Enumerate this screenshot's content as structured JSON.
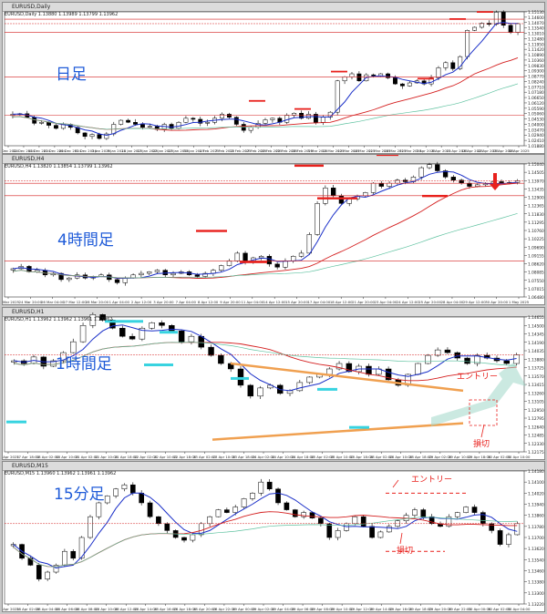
{
  "panels": [
    {
      "id": "daily",
      "window_title": "EURUSD,Daily",
      "info": "EURUSD,Daily  1.13880 1.13989 1.13799 1.13962",
      "timeframe_label": "日足",
      "price_ticks": [
        "1.15130",
        "1.14600",
        "1.14070",
        "1.13540",
        "1.13010",
        "1.12480",
        "1.11950",
        "1.11420",
        "1.10890",
        "1.10360",
        "1.09830",
        "1.09300",
        "1.08770",
        "1.08240",
        "1.07710",
        "1.07180",
        "1.06650",
        "1.06120",
        "1.05590",
        "1.05060",
        "1.04530",
        "1.04000",
        "1.03470",
        "1.02940",
        "1.02410",
        "1.01880"
      ],
      "time_ticks": [
        "9 Dec 2024",
        "12 Dec 2024",
        "18 Dec 2024",
        "23 Dec 2024",
        "26 Dec 2024",
        "31 Dec 2024",
        "3 Jan 2025",
        "9 Jan 2025",
        "14 Jan 2025",
        "17 Jan 2025",
        "22 Jan 2025",
        "27 Jan 2025",
        "30 Jan 2025",
        "4 Feb 2025",
        "7 Feb 2025",
        "12 Feb 2025",
        "17 Feb 2025",
        "20 Feb 2025",
        "25 Feb 2025",
        "28 Feb 2025",
        "5 Mar 2025",
        "10 Mar 2025",
        "13 Mar 2025",
        "18 Mar 2025",
        "21 Mar 2025",
        "26 Mar 2025",
        "31 Mar 2025",
        "3 Apr 2025",
        "8 Apr 2025",
        "11 Apr 2025",
        "16 Apr 2025",
        "22 Apr 2025",
        "25 Apr 2025",
        "30 Apr 2025"
      ]
    },
    {
      "id": "h4",
      "window_title": "EURUSD,H4",
      "info": "EURUSD,H4  1.13820 1.13854 1.13799 1.13962",
      "timeframe_label": "4時間足",
      "price_ticks": [
        "1.15040",
        "1.14505",
        "1.13970",
        "1.13435",
        "1.12900",
        "1.12365",
        "1.11830",
        "1.11295",
        "1.10760",
        "1.10225",
        "1.09690",
        "1.09155",
        "1.08620",
        "1.08085",
        "1.07550",
        "1.07015",
        "1.06480"
      ],
      "time_ticks": [
        "20 Mar 2025",
        "24 Mar 20:00",
        "26 Mar 04:00",
        "27 Mar 12:00",
        "28 Mar 20:00",
        "1 Apr 04:00",
        "2 Apr 12:00",
        "3 Apr 20:00",
        "7 Apr 04:00",
        "8 Apr 12:00",
        "9 Apr 20:00",
        "11 Apr 04:00",
        "14 Apr 12:00",
        "15 Apr 20:00",
        "17 Apr 04:00",
        "18 Apr 12:00",
        "21 Apr 20:00",
        "23 Apr 04:00",
        "24 Apr 12:00",
        "25 Apr 20:00",
        "28 Apr 04:00",
        "29 Apr 12:00",
        "30 Apr 20:00",
        "1 May 2025"
      ]
    },
    {
      "id": "h1",
      "window_title": "EURUSD,H1",
      "info": "EURUSD,H1  1.13962 1.13962 1.13961 1.13962",
      "timeframe_label": "1時間足",
      "entry_label": "エントリー",
      "stop_label": "損切",
      "price_ticks": [
        "1.14655",
        "1.14500",
        "1.14345",
        "1.14190",
        "1.14035",
        "1.13880",
        "1.13725",
        "1.13570",
        "1.13415",
        "1.13260",
        "1.13105",
        "1.12950",
        "1.12795",
        "1.12640",
        "1.12485",
        "1.12330",
        "1.12175"
      ],
      "time_ticks": [
        "17 Apr 2025",
        "17 Apr 18:00",
        "18 Apr 02:00",
        "18 Apr 10:00",
        "21 Apr 02:00",
        "21 Apr 10:00",
        "21 Apr 18:00",
        "22 Apr 02:00",
        "22 Apr 10:00",
        "22 Apr 18:00",
        "23 Apr 02:00",
        "23 Apr 10:00",
        "23 Apr 18:00",
        "24 Apr 02:00",
        "24 Apr 10:00",
        "24 Apr 18:00",
        "25 Apr 02:00",
        "25 Apr 10:00",
        "25 Apr 18:00",
        "28 Apr 02:00",
        "28 Apr 10:00",
        "28 Apr 18:00",
        "29 Apr 02:00",
        "29 Apr 10:00",
        "29 Apr 18:00",
        "30 Apr 02:00",
        "30 Apr 10:00"
      ]
    },
    {
      "id": "m15",
      "window_title": "EURUSD,M15",
      "info": "EURUSD,M15  1.13960 1.13962 1.13961 1.13962",
      "timeframe_label": "15分足",
      "entry_label": "エントリー",
      "stop_label": "損切",
      "price_ticks": [
        "1.14180",
        "1.14100",
        "1.14020",
        "1.13940",
        "1.13860",
        "1.13780",
        "1.13700",
        "1.13620",
        "1.13540",
        "1.13460",
        "1.13380",
        "1.13300",
        "1.13220"
      ],
      "time_ticks": [
        "28 Apr 2025",
        "28 Apr 02:00",
        "28 Apr 04:00",
        "28 Apr 06:00",
        "28 Apr 08:00",
        "28 Apr 10:00",
        "28 Apr 12:00",
        "28 Apr 14:00",
        "28 Apr 16:00",
        "28 Apr 18:00",
        "28 Apr 20:00",
        "28 Apr 22:00",
        "29 Apr 00:00",
        "29 Apr 02:00",
        "29 Apr 04:00",
        "29 Apr 06:00",
        "29 Apr 08:00",
        "29 Apr 10:00",
        "29 Apr 12:00",
        "29 Apr 14:00",
        "29 Apr 16:00",
        "29 Apr 18:00",
        "29 Apr 20:00",
        "29 Apr 22:00",
        "30 Apr 00:00",
        "30 Apr 02:00",
        "30 Apr 04:00"
      ]
    }
  ],
  "colors": {
    "bull_candle": "#ffffff",
    "bear_candle": "#000000",
    "ma_short": "#1a2fc8",
    "ma_mid": "#d41f1f",
    "ma_long": "#5fc2a0",
    "support_line": "#d41f1f",
    "trendline": "#f0a050",
    "cyan_marker": "#37d3e0",
    "red_marker": "#e8201c",
    "label_blue": "#1f5bd8"
  },
  "chart_data": [
    {
      "panel": "daily",
      "type": "candlestick",
      "close": [
        1.05,
        1.0505,
        1.047,
        1.041,
        1.042,
        1.039,
        1.036,
        1.04,
        1.037,
        1.0315,
        1.028,
        1.03,
        1.026,
        1.0305,
        1.04,
        1.044,
        1.042,
        1.04,
        1.037,
        1.038,
        1.035,
        1.04,
        1.036,
        1.042,
        1.046,
        1.045,
        1.041,
        1.042,
        1.046,
        1.05,
        1.047,
        1.04,
        1.034,
        1.037,
        1.041,
        1.0445,
        1.046,
        1.042,
        1.049,
        1.051,
        1.046,
        1.05,
        1.042,
        1.047,
        1.052,
        1.083,
        1.087,
        1.09,
        1.083,
        1.089,
        1.088,
        1.09,
        1.086,
        1.08,
        1.078,
        1.081,
        1.083,
        1.08,
        1.086,
        1.096,
        1.101,
        1.095,
        1.107,
        1.133,
        1.136,
        1.14,
        1.139,
        1.151,
        1.138,
        1.131,
        1.1396
      ]
    },
    {
      "panel": "h4",
      "type": "candlestick",
      "close": [
        1.083,
        1.0845,
        1.081,
        1.082,
        1.079,
        1.08,
        1.076,
        1.077,
        1.079,
        1.077,
        1.078,
        1.079,
        1.076,
        1.074,
        1.077,
        1.079,
        1.08,
        1.081,
        1.082,
        1.079,
        1.08,
        1.081,
        1.079,
        1.078,
        1.08,
        1.082,
        1.085,
        1.088,
        1.093,
        1.087,
        1.09,
        1.091,
        1.086,
        1.084,
        1.088,
        1.091,
        1.093,
        1.105,
        1.125,
        1.135,
        1.13,
        1.125,
        1.128,
        1.13,
        1.132,
        1.138,
        1.136,
        1.138,
        1.14,
        1.139,
        1.142,
        1.148,
        1.15,
        1.146,
        1.142,
        1.14,
        1.138,
        1.136,
        1.137,
        1.138,
        1.139,
        1.138,
        1.1385,
        1.1396
      ]
    },
    {
      "panel": "h1",
      "type": "candlestick",
      "close": [
        1.1385,
        1.138,
        1.1392,
        1.1375,
        1.1385,
        1.14,
        1.142,
        1.145,
        1.147,
        1.146,
        1.1445,
        1.143,
        1.1425,
        1.1445,
        1.1455,
        1.145,
        1.144,
        1.142,
        1.143,
        1.141,
        1.1395,
        1.138,
        1.137,
        1.134,
        1.132,
        1.1335,
        1.134,
        1.1325,
        1.133,
        1.1345,
        1.1355,
        1.136,
        1.137,
        1.138,
        1.1365,
        1.1375,
        1.136,
        1.137,
        1.135,
        1.134,
        1.136,
        1.138,
        1.1395,
        1.1405,
        1.14,
        1.139,
        1.138,
        1.1395,
        1.139,
        1.1385,
        1.138,
        1.1396
      ]
    },
    {
      "panel": "m15",
      "type": "candlestick",
      "close": [
        1.1365,
        1.1355,
        1.135,
        1.134,
        1.1345,
        1.135,
        1.136,
        1.1355,
        1.137,
        1.1385,
        1.1395,
        1.14,
        1.1405,
        1.1408,
        1.1402,
        1.1395,
        1.1385,
        1.138,
        1.1375,
        1.137,
        1.1368,
        1.1372,
        1.138,
        1.1385,
        1.139,
        1.1388,
        1.1392,
        1.1398,
        1.1402,
        1.141,
        1.1405,
        1.1395,
        1.139,
        1.1385,
        1.1388,
        1.1384,
        1.138,
        1.137,
        1.1375,
        1.138,
        1.1385,
        1.1378,
        1.137,
        1.1374,
        1.1378,
        1.1382,
        1.1386,
        1.139,
        1.1385,
        1.138,
        1.1378,
        1.1385,
        1.1388,
        1.1392,
        1.1388,
        1.138,
        1.1375,
        1.1365,
        1.1372,
        1.138
      ]
    }
  ]
}
